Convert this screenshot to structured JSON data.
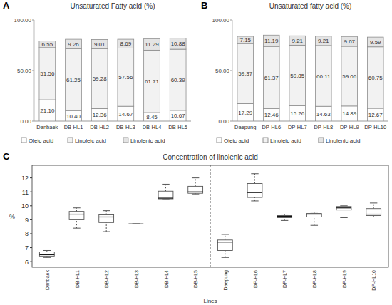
{
  "chart_data": [
    {
      "type": "bar",
      "panel": "A",
      "title": "Unsaturated Fatty acid (%)",
      "stacked": true,
      "data_labels": true,
      "legend": "bottom",
      "grid": false,
      "categories": [
        "Danbaek",
        "DB-HL1",
        "DB-HL2",
        "DB-HL3",
        "DB-HL4",
        "DB-HL5"
      ],
      "ylim": [
        0,
        100
      ],
      "yticks": [
        {
          "value": 0,
          "label": "0.00"
        },
        {
          "value": 50,
          "label": "50.00"
        },
        {
          "value": 100,
          "label": "100.00"
        }
      ],
      "series": [
        {
          "name": "Oleic acid",
          "color": "#fdfdfd",
          "values": [
            21.1,
            10.4,
            12.36,
            14.67,
            8.45,
            10.67
          ],
          "value_labels": [
            "21.10",
            "10.40",
            "12.36",
            "14.67",
            "8.45",
            "10.67"
          ]
        },
        {
          "name": "Linoleic acid",
          "color": "#f2f2f2",
          "values": [
            51.56,
            61.25,
            59.28,
            57.56,
            61.71,
            60.39
          ],
          "value_labels": [
            "51.56",
            "61.25",
            "59.28",
            "57.56",
            "61.71",
            "60.39"
          ]
        },
        {
          "name": "Linolenic acid",
          "color": "#e4e4e4",
          "values": [
            6.55,
            9.26,
            9.01,
            8.69,
            11.29,
            10.88
          ],
          "value_labels": [
            "6.55",
            "9.26",
            "9.01",
            "8.69",
            "11.29",
            "10.88"
          ]
        }
      ]
    },
    {
      "type": "bar",
      "panel": "B",
      "title": "Unsaturated fatty acid (%)",
      "stacked": true,
      "data_labels": true,
      "legend": "bottom",
      "grid": false,
      "categories": [
        "Daepung",
        "DP-HL6",
        "DP-HL7",
        "DP-HL8",
        "DP-HL9",
        "DP-HL10"
      ],
      "ylim": [
        0,
        100
      ],
      "yticks": [
        {
          "value": 0,
          "label": "0.00"
        },
        {
          "value": 50,
          "label": "50.00"
        },
        {
          "value": 100,
          "label": "100.00"
        }
      ],
      "series": [
        {
          "name": "Oleic acid",
          "color": "#fdfdfd",
          "values": [
            17.29,
            12.46,
            15.26,
            14.63,
            14.89,
            12.67
          ],
          "value_labels": [
            "17.29",
            "12.46",
            "15.26",
            "14.63",
            "14.89",
            "12.67"
          ]
        },
        {
          "name": "Linoleic acid",
          "color": "#f2f2f2",
          "values": [
            59.37,
            61.37,
            59.85,
            60.11,
            59.06,
            60.75
          ],
          "value_labels": [
            "59.37",
            "61.37",
            "59.85",
            "60.11",
            "59.06",
            "60.75"
          ]
        },
        {
          "name": "Linolenic acid",
          "color": "#e4e4e4",
          "values": [
            7.15,
            11.19,
            9.21,
            9.21,
            9.67,
            9.59
          ],
          "value_labels": [
            "7.15",
            "11.19",
            "9.21",
            "9.21",
            "9.67",
            "9.59"
          ]
        }
      ]
    },
    {
      "type": "box",
      "panel": "C",
      "title": "Concentration of linolenic acid",
      "x_label": "Lines",
      "y_label": "%",
      "grid": false,
      "categories": [
        "Danbaek",
        "DB-HL1",
        "DB-HL2",
        "DB-HL3",
        "DB-HL4",
        "DB-HL5",
        "Daepung",
        "DP-HL6",
        "DP-HL7",
        "DP-HL8",
        "DP-HL9",
        "DP-HL10"
      ],
      "ylim": [
        5.6,
        12.9
      ],
      "yticks": [
        6,
        7,
        8,
        9,
        10,
        11,
        12
      ],
      "color": "#ffffff",
      "boxes": [
        {
          "min": 6.3,
          "q1": 6.4,
          "median": 6.5,
          "q3": 6.7,
          "max": 6.8
        },
        {
          "min": 8.4,
          "q1": 9.0,
          "median": 9.4,
          "q3": 9.6,
          "max": 9.85
        },
        {
          "min": 8.15,
          "q1": 8.8,
          "median": 9.2,
          "q3": 9.35,
          "max": 9.65
        },
        {
          "min": 8.7,
          "q1": 8.7,
          "median": 8.7,
          "q3": 8.7,
          "max": 8.7
        },
        {
          "min": 10.5,
          "q1": 10.5,
          "median": 10.55,
          "q3": 11.05,
          "max": 11.55
        },
        {
          "min": 10.85,
          "q1": 10.9,
          "median": 11.0,
          "q3": 11.4,
          "max": 12.0
        },
        {
          "min": 6.3,
          "q1": 6.8,
          "median": 7.4,
          "q3": 7.55,
          "max": 7.95
        },
        {
          "min": 10.35,
          "q1": 10.6,
          "median": 10.95,
          "q3": 11.6,
          "max": 12.3
        },
        {
          "min": 8.95,
          "q1": 9.15,
          "median": 9.25,
          "q3": 9.3,
          "max": 9.4
        },
        {
          "min": 8.6,
          "q1": 9.2,
          "median": 9.4,
          "q3": 9.45,
          "max": 9.55
        },
        {
          "min": 9.15,
          "q1": 9.7,
          "median": 9.85,
          "q3": 9.95,
          "max": 10.0
        },
        {
          "min": 9.2,
          "q1": 9.3,
          "median": 9.4,
          "q3": 9.8,
          "max": 10.2
        }
      ]
    }
  ]
}
